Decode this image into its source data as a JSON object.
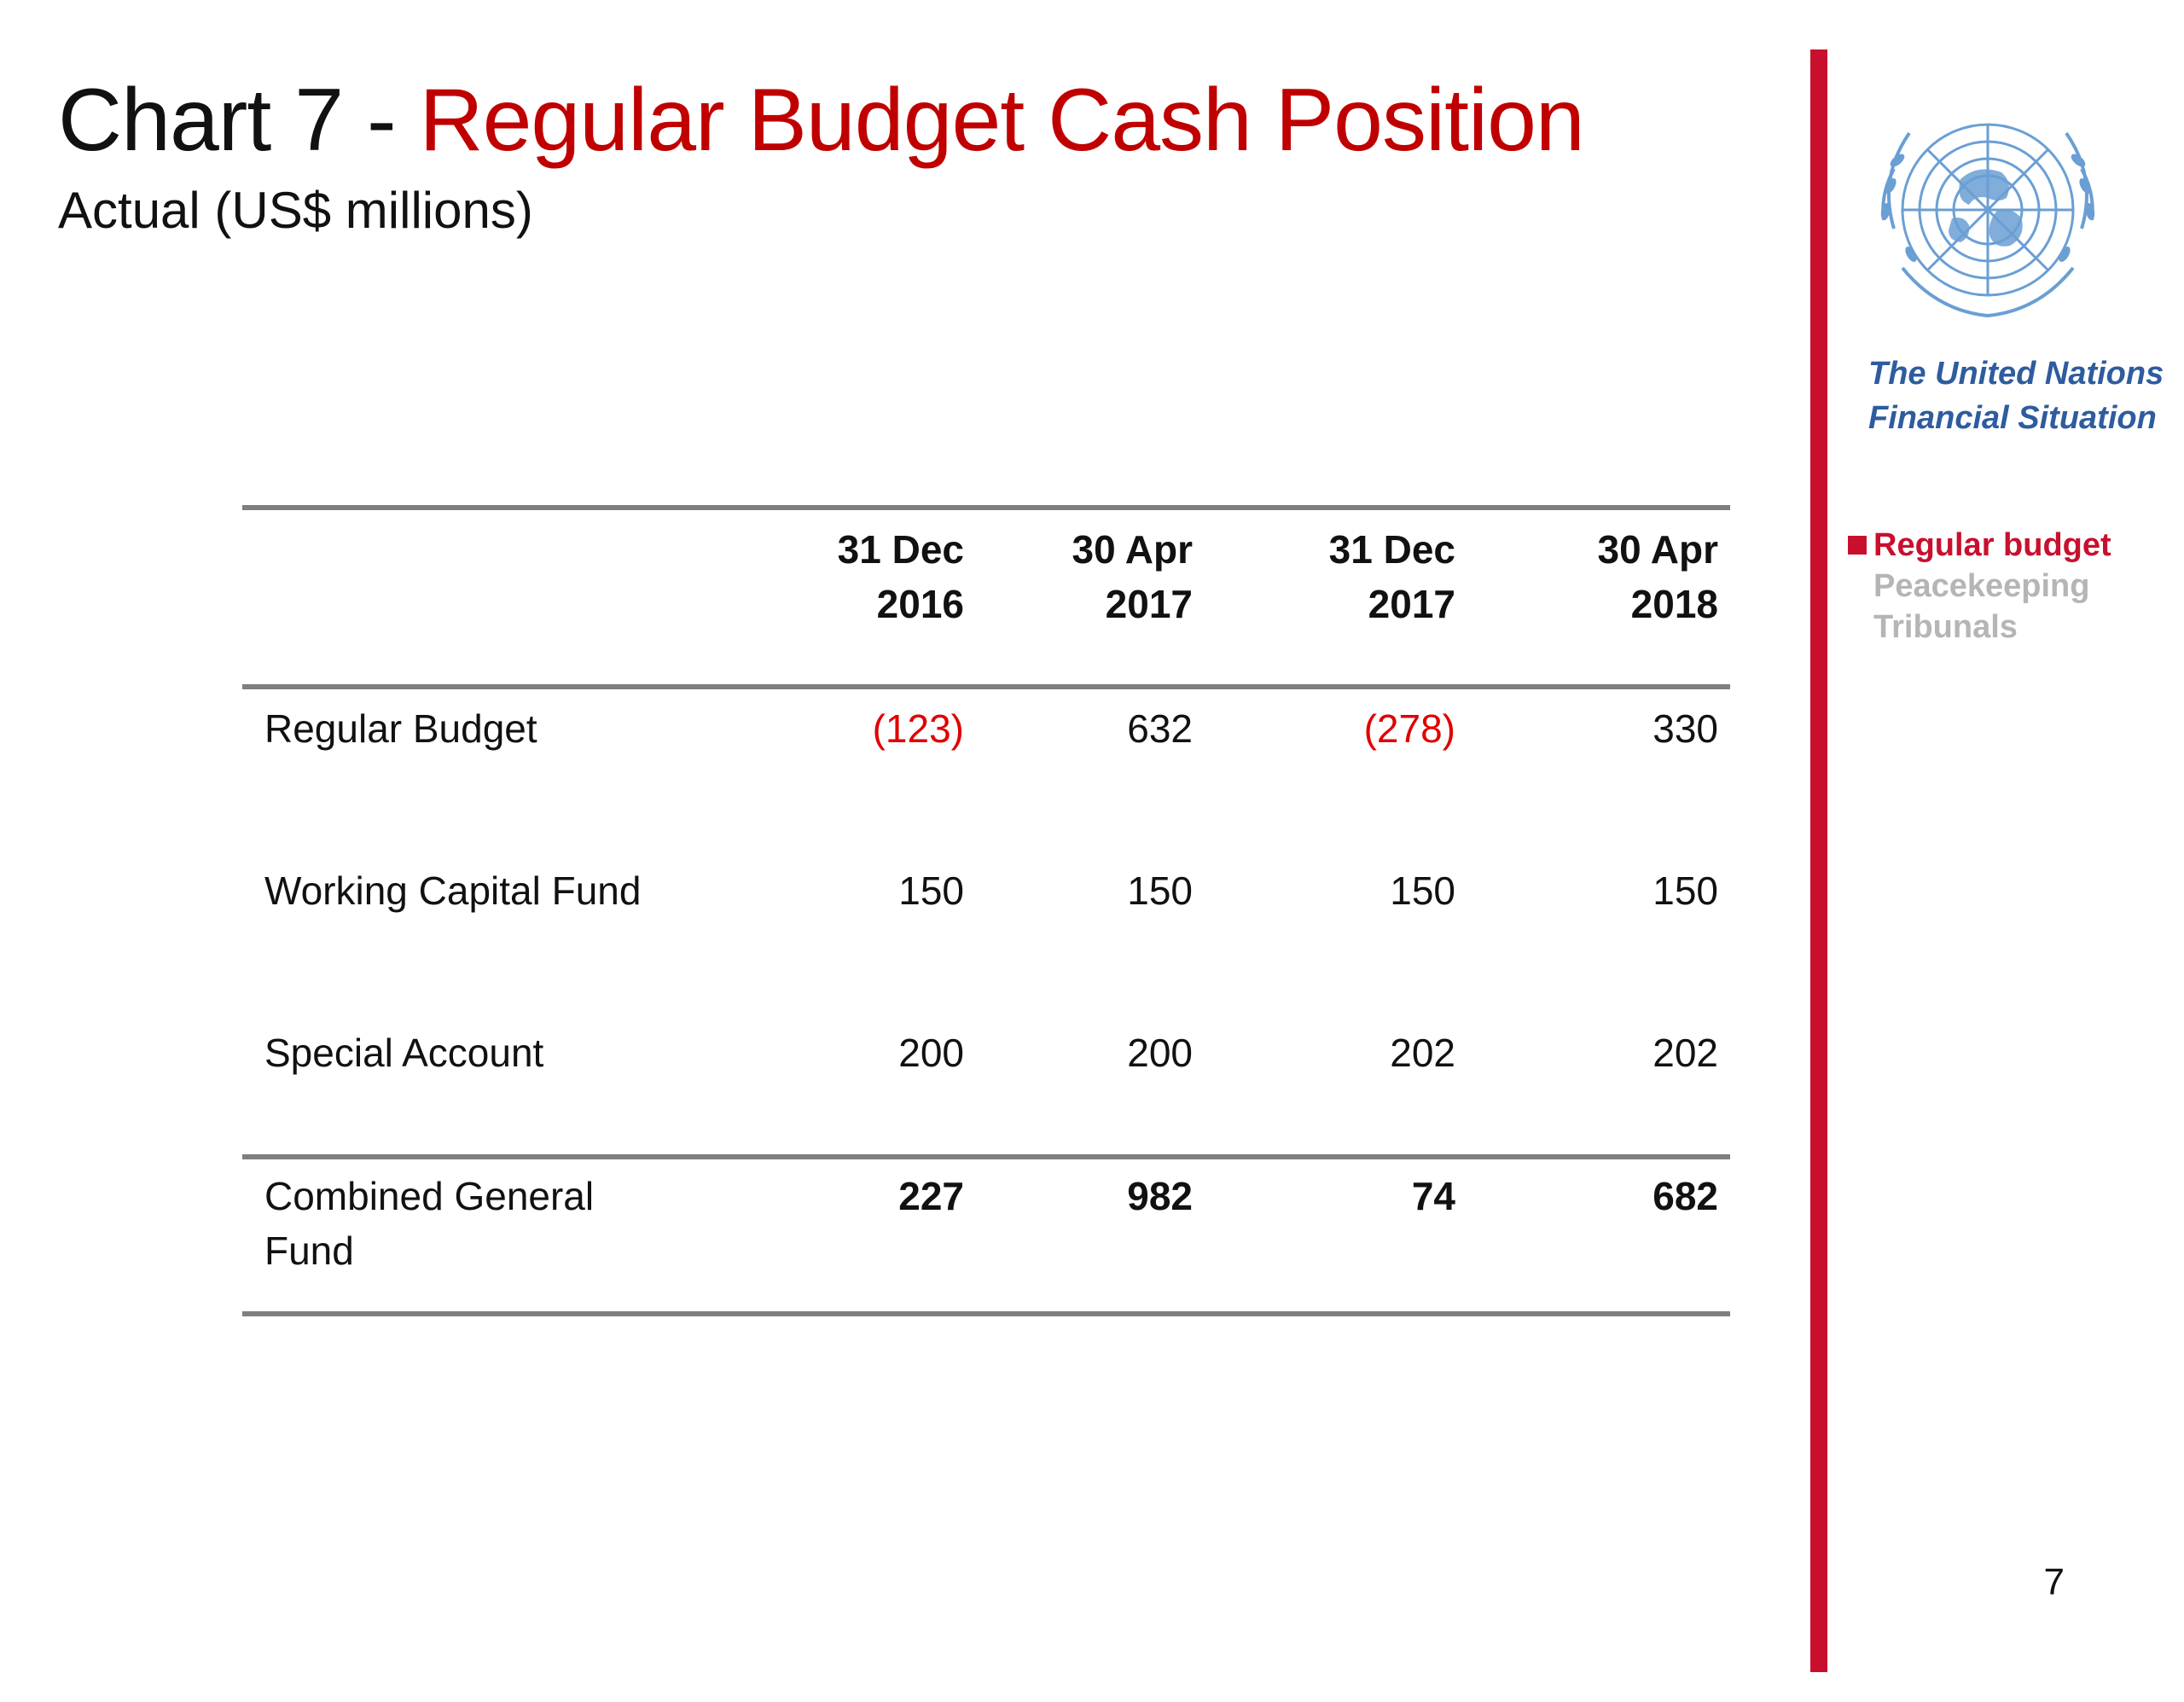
{
  "title": {
    "prefix": "Chart 7 - ",
    "highlight": "Regular Budget Cash Position"
  },
  "subtitle": "Actual (US$ millions)",
  "brand": {
    "line1": "The United Nations",
    "line2": "Financial Situation",
    "logo_icon": "un-emblem-icon"
  },
  "nav": {
    "items": [
      {
        "label": "Regular budget",
        "active": true
      },
      {
        "label": "Peacekeeping",
        "active": false
      },
      {
        "label": "Tribunals",
        "active": false
      }
    ]
  },
  "colors": {
    "accent_red": "#c8102e",
    "title_red": "#c00000",
    "negative_red": "#e00000",
    "brand_blue": "#2e5c9e",
    "rule_gray": "#7f7f7f"
  },
  "chart_data": {
    "type": "table",
    "columns": [
      {
        "line1": "31 Dec",
        "line2": "2016"
      },
      {
        "line1": "30 Apr",
        "line2": "2017"
      },
      {
        "line1": "31 Dec",
        "line2": "2017"
      },
      {
        "line1": "30 Apr",
        "line2": "2018"
      }
    ],
    "rows": [
      {
        "label": "Regular Budget",
        "values": [
          "(123)",
          "632",
          "(278)",
          "330"
        ],
        "numeric": [
          -123,
          632,
          -278,
          330
        ]
      },
      {
        "label": "Working Capital Fund",
        "values": [
          "150",
          "150",
          "150",
          "150"
        ],
        "numeric": [
          150,
          150,
          150,
          150
        ]
      },
      {
        "label": "Special Account",
        "values": [
          "200",
          "200",
          "202",
          "202"
        ],
        "numeric": [
          200,
          200,
          202,
          202
        ]
      }
    ],
    "total": {
      "label_line1": "Combined General",
      "label_line2": "Fund",
      "values": [
        "227",
        "982",
        "74",
        "682"
      ],
      "numeric": [
        227,
        982,
        74,
        682
      ]
    }
  },
  "page_number": "7"
}
